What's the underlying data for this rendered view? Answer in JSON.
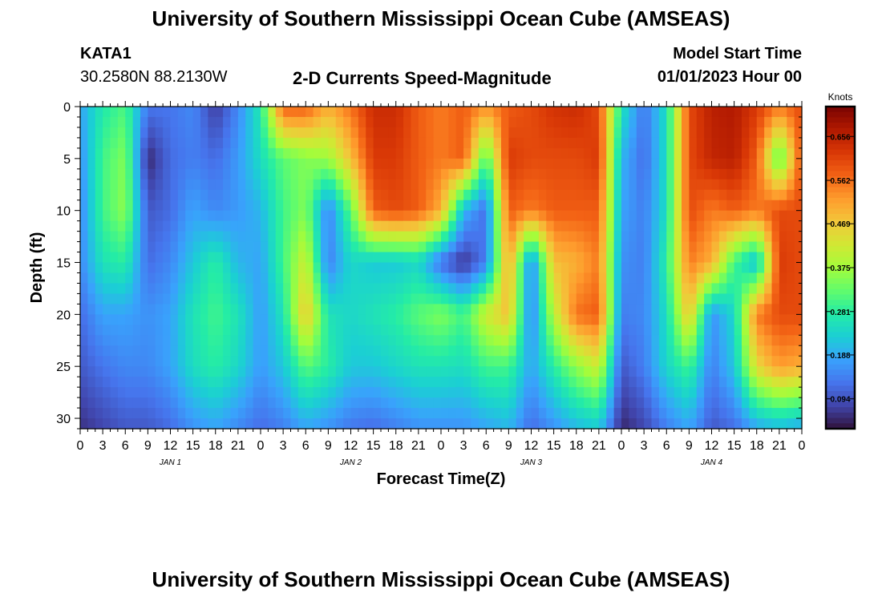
{
  "header": {
    "title": "University of Southern Mississippi Ocean Cube (AMSEAS)",
    "station_id": "KATA1",
    "station_coords": "30.2580N  88.2130W",
    "plot_title": "2-D Currents Speed-Magnitude",
    "model_start_label": "Model Start Time",
    "model_start_value": "01/01/2023 Hour 00"
  },
  "footer": {
    "repeat_title": "University of Southern Mississippi Ocean Cube (AMSEAS)"
  },
  "chart_data": {
    "type": "heatmap",
    "title": "2-D Currents Speed-Magnitude",
    "xlabel": "Forecast Time(Z)",
    "ylabel": "Depth (ft)",
    "colorbar_label": "Knots",
    "x_tick_labels": [
      "0",
      "3",
      "6",
      "9",
      "12",
      "15",
      "18",
      "21",
      "0",
      "3",
      "6",
      "9",
      "12",
      "15",
      "18",
      "21",
      "0",
      "3",
      "6",
      "9",
      "12",
      "15",
      "18",
      "21",
      "0",
      "3",
      "6",
      "9",
      "12",
      "15",
      "18",
      "21",
      "0"
    ],
    "day_labels": [
      "JAN 1",
      "JAN 2",
      "JAN 3",
      "JAN 4"
    ],
    "y_ticks": [
      0,
      5,
      10,
      15,
      20,
      25,
      30
    ],
    "ylim": [
      0,
      31
    ],
    "xlim_hours": [
      0,
      96
    ],
    "y_inverted": true,
    "colorbar_ticks": [
      "0.656",
      "0.562",
      "0.469",
      "0.375",
      "0.281",
      "0.188",
      "0.094"
    ],
    "color_range": [
      0.03,
      0.72
    ],
    "colormap": [
      "#30123b",
      "#4145ab",
      "#4675ed",
      "#39a2fc",
      "#1bcfd4",
      "#24eca6",
      "#61fc6c",
      "#a4fc3b",
      "#d1e834",
      "#f3c63a",
      "#fe9b2d",
      "#f36315",
      "#d93806",
      "#b11901",
      "#7a0402"
    ],
    "speed_grid": {
      "hours": [
        0,
        3,
        6,
        9,
        12,
        15,
        18,
        21,
        24,
        27,
        30,
        33,
        36,
        39,
        42,
        45,
        48,
        51,
        54,
        57,
        60,
        63,
        66,
        69,
        72,
        75,
        78,
        81,
        84,
        87,
        90,
        93,
        96
      ],
      "depths": [
        0,
        5,
        10,
        15,
        20,
        25,
        31
      ],
      "values": [
        [
          0.18,
          0.27,
          0.31,
          0.13,
          0.13,
          0.15,
          0.07,
          0.15,
          0.27,
          0.58,
          0.58,
          0.5,
          0.56,
          0.64,
          0.64,
          0.58,
          0.55,
          0.58,
          0.53,
          0.58,
          0.6,
          0.63,
          0.64,
          0.6,
          0.26,
          0.13,
          0.25,
          0.6,
          0.66,
          0.67,
          0.62,
          0.55,
          0.6
        ],
        [
          0.16,
          0.3,
          0.35,
          0.05,
          0.12,
          0.14,
          0.12,
          0.17,
          0.25,
          0.32,
          0.35,
          0.37,
          0.48,
          0.62,
          0.62,
          0.58,
          0.55,
          0.58,
          0.3,
          0.62,
          0.6,
          0.6,
          0.6,
          0.62,
          0.2,
          0.12,
          0.25,
          0.6,
          0.65,
          0.66,
          0.58,
          0.3,
          0.6
        ],
        [
          0.15,
          0.3,
          0.36,
          0.1,
          0.12,
          0.18,
          0.15,
          0.17,
          0.2,
          0.3,
          0.35,
          0.14,
          0.32,
          0.58,
          0.6,
          0.58,
          0.5,
          0.2,
          0.12,
          0.58,
          0.55,
          0.58,
          0.58,
          0.58,
          0.18,
          0.14,
          0.25,
          0.6,
          0.55,
          0.58,
          0.55,
          0.6,
          0.6
        ],
        [
          0.15,
          0.26,
          0.28,
          0.12,
          0.15,
          0.22,
          0.28,
          0.2,
          0.18,
          0.3,
          0.42,
          0.14,
          0.24,
          0.22,
          0.22,
          0.24,
          0.12,
          0.06,
          0.14,
          0.52,
          0.14,
          0.48,
          0.5,
          0.55,
          0.16,
          0.14,
          0.28,
          0.55,
          0.5,
          0.3,
          0.2,
          0.62,
          0.6
        ],
        [
          0.12,
          0.18,
          0.18,
          0.16,
          0.18,
          0.26,
          0.3,
          0.26,
          0.17,
          0.26,
          0.48,
          0.26,
          0.24,
          0.26,
          0.28,
          0.32,
          0.35,
          0.3,
          0.42,
          0.48,
          0.14,
          0.4,
          0.56,
          0.58,
          0.14,
          0.15,
          0.25,
          0.48,
          0.16,
          0.24,
          0.55,
          0.6,
          0.6
        ],
        [
          0.1,
          0.13,
          0.15,
          0.15,
          0.18,
          0.25,
          0.28,
          0.24,
          0.17,
          0.22,
          0.32,
          0.28,
          0.22,
          0.22,
          0.24,
          0.26,
          0.26,
          0.25,
          0.3,
          0.3,
          0.18,
          0.28,
          0.36,
          0.42,
          0.1,
          0.14,
          0.24,
          0.3,
          0.14,
          0.22,
          0.45,
          0.52,
          0.5
        ],
        [
          0.06,
          0.08,
          0.1,
          0.1,
          0.12,
          0.16,
          0.18,
          0.15,
          0.12,
          0.14,
          0.18,
          0.16,
          0.13,
          0.12,
          0.14,
          0.16,
          0.16,
          0.16,
          0.18,
          0.2,
          0.12,
          0.16,
          0.2,
          0.22,
          0.05,
          0.08,
          0.14,
          0.18,
          0.1,
          0.12,
          0.18,
          0.2,
          0.18
        ]
      ]
    }
  }
}
